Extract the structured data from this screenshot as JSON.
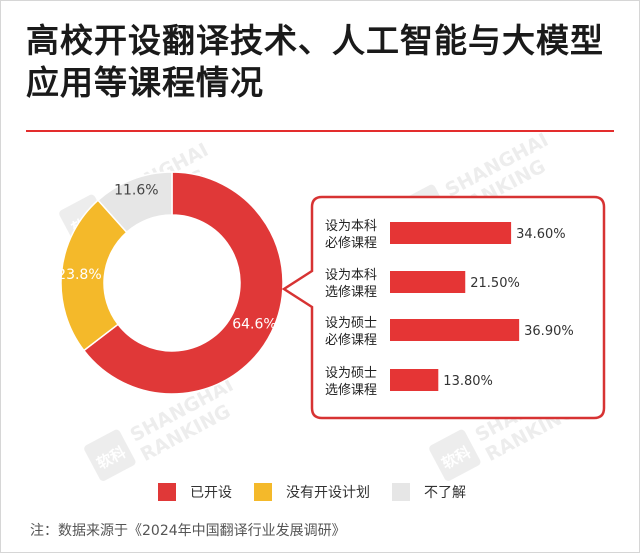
{
  "title": "高校开设翻译技术、人工智能与大模型应用等课程情况",
  "note": "注：数据来源于《2024年中国翻译行业发展调研》",
  "watermark": {
    "mark": "软科",
    "line1": "SHANGHAI",
    "line2": "RANKING"
  },
  "colors": {
    "accent": "#e32d2d",
    "pie_red": "#e03838",
    "pie_yellow": "#f4b92a",
    "pie_gray": "#e6e6e6",
    "bar_red": "#e53535"
  },
  "chart_data": [
    {
      "type": "pie",
      "style": "donut",
      "categories": [
        "已开设",
        "没有开设计划",
        "不了解"
      ],
      "values": [
        64.6,
        23.8,
        11.6
      ],
      "labels": [
        "64.6%",
        "23.8%",
        "11.6%"
      ],
      "colors": [
        "#e03838",
        "#f4b92a",
        "#e6e6e6"
      ],
      "legend_position": "bottom"
    },
    {
      "type": "bar",
      "orientation": "horizontal",
      "categories": [
        [
          "设为本科",
          "必修课程"
        ],
        [
          "设为本科",
          "选修课程"
        ],
        [
          "设为硕士",
          "必修课程"
        ],
        [
          "设为硕士",
          "选修课程"
        ]
      ],
      "values": [
        34.6,
        21.5,
        36.9,
        13.8
      ],
      "labels": [
        "34.60%",
        "21.50%",
        "36.90%",
        "13.80%"
      ],
      "xlim": [
        0,
        40
      ],
      "grid": false,
      "color": "#e53535"
    }
  ],
  "legend": [
    {
      "label": "已开设",
      "color": "#e03838"
    },
    {
      "label": "没有开设计划",
      "color": "#f4b92a"
    },
    {
      "label": "不了解",
      "color": "#e6e6e6"
    }
  ]
}
